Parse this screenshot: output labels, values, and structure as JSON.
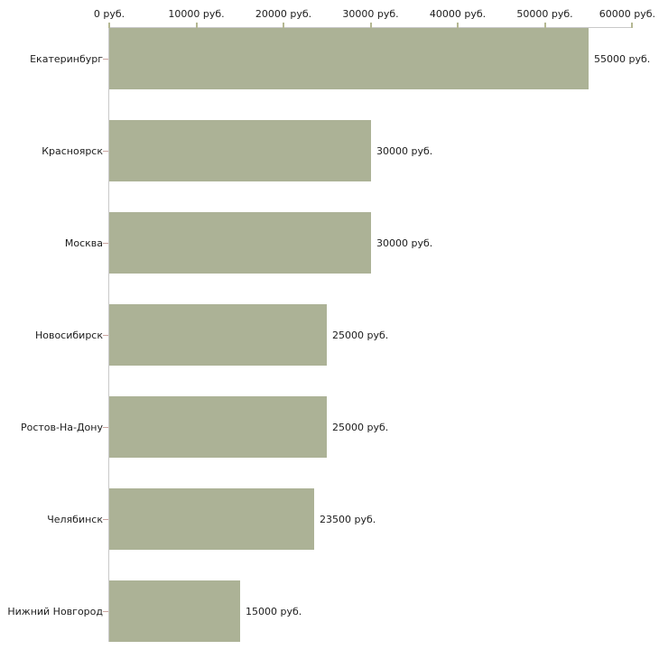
{
  "chart_data": {
    "type": "bar",
    "orientation": "horizontal",
    "categories": [
      "Екатеринбург",
      "Красноярск",
      "Москва",
      "Новосибирск",
      "Ростов-На-Дону",
      "Челябинск",
      "Нижний Новгород"
    ],
    "values": [
      55000,
      30000,
      30000,
      25000,
      25000,
      23500,
      15000
    ],
    "value_labels": [
      "55000 руб.",
      "30000 руб.",
      "30000 руб.",
      "25000 руб.",
      "25000 руб.",
      "23500 руб.",
      "15000 руб."
    ],
    "x_tick_labels": [
      "0 руб.",
      "10000 руб.",
      "20000 руб.",
      "30000 руб.",
      "40000 руб.",
      "50000 руб.",
      "60000 руб."
    ],
    "x_tick_values": [
      0,
      10000,
      20000,
      30000,
      40000,
      50000,
      60000
    ],
    "xlim": [
      0,
      60000
    ],
    "xlabel": "",
    "ylabel": "",
    "title": "",
    "legend": "none",
    "grid": "off",
    "axis_position": "top",
    "colors": {
      "bar": "#acb296",
      "axis_line": "#c9c9c9",
      "x_tick": "#b5b893",
      "category_tick": "#c9a5a0",
      "text": "#1c1c1c",
      "background": "#ffffff"
    }
  }
}
